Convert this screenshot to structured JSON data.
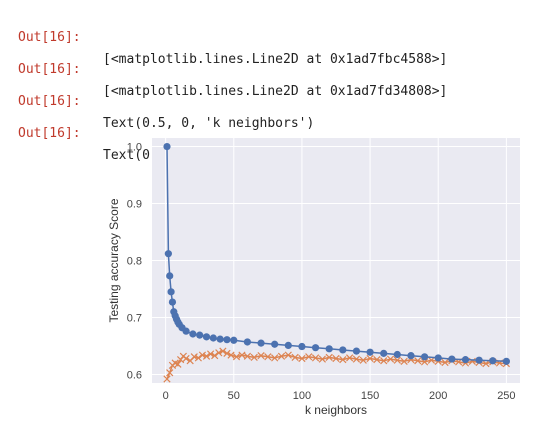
{
  "outputs": [
    {
      "prompt": "Out[16]:",
      "text": "[<matplotlib.lines.Line2D at 0x1ad7fbc4588>]"
    },
    {
      "prompt": "Out[16]:",
      "text": "[<matplotlib.lines.Line2D at 0x1ad7fd34808>]"
    },
    {
      "prompt": "Out[16]:",
      "text": "Text(0.5, 0, 'k neighbors')"
    },
    {
      "prompt": "Out[16]:",
      "text": "Text(0, 0.5, 'Testing accuracy Score')"
    }
  ],
  "colors": {
    "prompt": "#c0392b",
    "plot_background": "#eaeaf2",
    "grid": "#ffffff",
    "series_blue": "#4c72b0",
    "series_orange": "#dd8452"
  },
  "chart_data": {
    "type": "line",
    "title": "",
    "xlabel": "k neighbors",
    "ylabel": "Testing accuracy Score",
    "xlim": [
      -10,
      260
    ],
    "ylim": [
      0.585,
      1.015
    ],
    "xticks": [
      0,
      50,
      100,
      150,
      200,
      250
    ],
    "yticks": [
      0.6,
      0.7,
      0.8,
      0.9,
      1.0
    ],
    "ytick_labels": [
      "0.6",
      "0.7",
      "0.8",
      "0.9",
      "1.0"
    ],
    "grid": true,
    "legend": "none",
    "series": [
      {
        "color": "#4c72b0",
        "marker": "circle",
        "x": [
          1,
          2,
          3,
          4,
          5,
          6,
          7,
          8,
          9,
          10,
          12,
          15,
          20,
          25,
          30,
          35,
          40,
          45,
          50,
          60,
          70,
          80,
          90,
          100,
          110,
          120,
          130,
          140,
          150,
          160,
          170,
          180,
          190,
          200,
          210,
          220,
          230,
          240,
          250
        ],
        "values": [
          1.0,
          0.812,
          0.773,
          0.745,
          0.727,
          0.71,
          0.703,
          0.697,
          0.692,
          0.688,
          0.682,
          0.676,
          0.671,
          0.669,
          0.666,
          0.664,
          0.662,
          0.661,
          0.66,
          0.657,
          0.655,
          0.653,
          0.651,
          0.649,
          0.647,
          0.645,
          0.643,
          0.641,
          0.639,
          0.637,
          0.635,
          0.633,
          0.631,
          0.629,
          0.627,
          0.626,
          0.625,
          0.624,
          0.623
        ]
      },
      {
        "color": "#dd8452",
        "marker": "x",
        "x": [
          1,
          3,
          5,
          7,
          9,
          11,
          13,
          15,
          18,
          21,
          24,
          27,
          30,
          33,
          36,
          39,
          42,
          45,
          48,
          52,
          56,
          60,
          65,
          70,
          75,
          80,
          85,
          90,
          95,
          100,
          105,
          110,
          115,
          120,
          125,
          130,
          135,
          140,
          145,
          150,
          155,
          160,
          165,
          170,
          175,
          180,
          185,
          190,
          195,
          200,
          205,
          210,
          215,
          220,
          225,
          230,
          235,
          240,
          245,
          250
        ],
        "values": [
          0.592,
          0.603,
          0.616,
          0.62,
          0.618,
          0.626,
          0.632,
          0.628,
          0.624,
          0.631,
          0.629,
          0.634,
          0.632,
          0.636,
          0.633,
          0.638,
          0.641,
          0.637,
          0.634,
          0.631,
          0.634,
          0.632,
          0.63,
          0.633,
          0.631,
          0.629,
          0.632,
          0.634,
          0.63,
          0.628,
          0.631,
          0.629,
          0.627,
          0.63,
          0.628,
          0.626,
          0.629,
          0.627,
          0.625,
          0.628,
          0.626,
          0.624,
          0.627,
          0.625,
          0.623,
          0.626,
          0.624,
          0.622,
          0.625,
          0.623,
          0.621,
          0.624,
          0.622,
          0.62,
          0.623,
          0.621,
          0.619,
          0.622,
          0.62,
          0.619
        ]
      }
    ]
  }
}
